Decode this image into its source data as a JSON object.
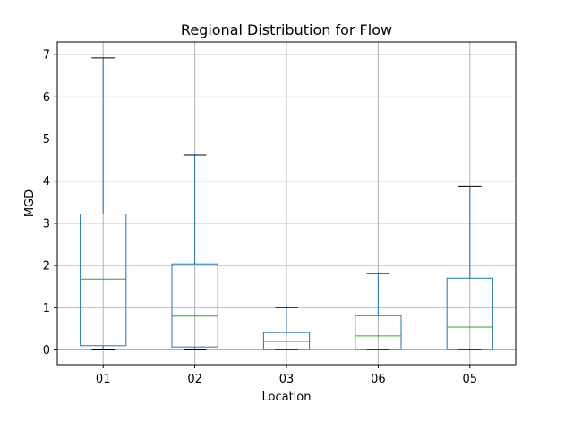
{
  "chart_data": {
    "type": "box",
    "title": "Regional Distribution for Flow",
    "xlabel": "Location",
    "ylabel": "MGD",
    "categories": [
      "01",
      "02",
      "03",
      "06",
      "05"
    ],
    "ylim": [
      -0.35,
      7.3
    ],
    "yticks": [
      0,
      1,
      2,
      3,
      4,
      5,
      6,
      7
    ],
    "grid": true,
    "boxes": [
      {
        "category": "01",
        "whisker_low": 0.0,
        "q1": 0.1,
        "median": 1.68,
        "q3": 3.22,
        "whisker_high": 6.92
      },
      {
        "category": "02",
        "whisker_low": 0.0,
        "q1": 0.07,
        "median": 0.8,
        "q3": 2.04,
        "whisker_high": 4.63
      },
      {
        "category": "03",
        "whisker_low": 0.0,
        "q1": 0.01,
        "median": 0.2,
        "q3": 0.41,
        "whisker_high": 1.0
      },
      {
        "category": "06",
        "whisker_low": 0.0,
        "q1": 0.01,
        "median": 0.33,
        "q3": 0.81,
        "whisker_high": 1.81
      },
      {
        "category": "05",
        "whisker_low": 0.0,
        "q1": 0.01,
        "median": 0.54,
        "q3": 1.7,
        "whisker_high": 3.88
      }
    ],
    "colors": {
      "box": "#1f77b4",
      "median": "#2ca02c",
      "cap": "#000000",
      "grid": "#b0b0b0"
    }
  }
}
